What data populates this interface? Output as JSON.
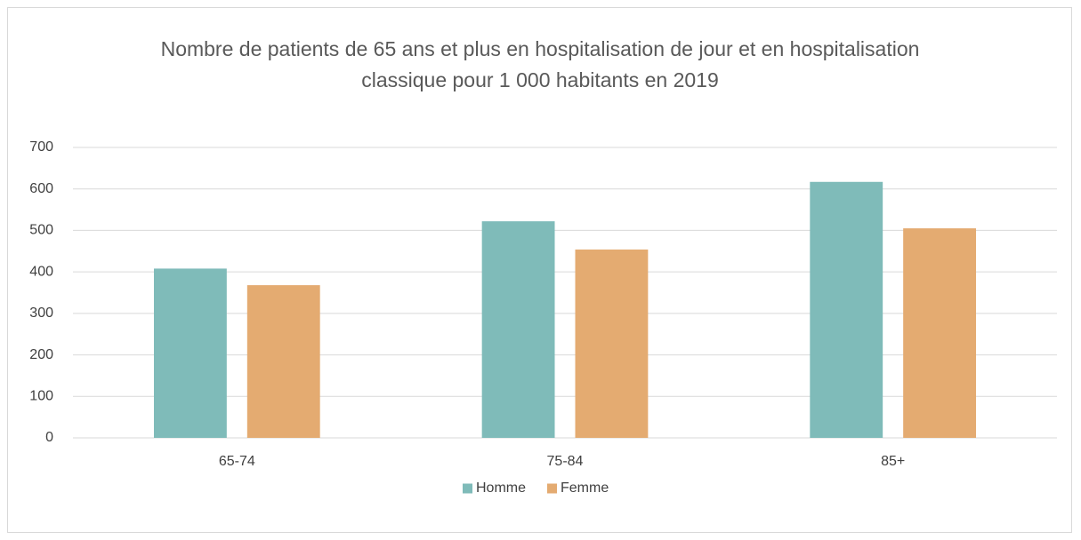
{
  "chart_data": {
    "type": "bar",
    "title": "Nombre de patients de 65 ans et plus en hospitalisation de jour et en hospitalisation classique pour 1 000 habitants en 2019",
    "categories": [
      "65-74",
      "75-84",
      "85+"
    ],
    "series": [
      {
        "name": "Homme",
        "color": "#7fbbb9",
        "values": [
          408,
          522,
          617
        ]
      },
      {
        "name": "Femme",
        "color": "#e4ab71",
        "values": [
          368,
          454,
          505
        ]
      }
    ],
    "ylim": [
      0,
      700
    ],
    "yticks": [
      0,
      100,
      200,
      300,
      400,
      500,
      600,
      700
    ],
    "grid": true,
    "legend": "bottom"
  }
}
